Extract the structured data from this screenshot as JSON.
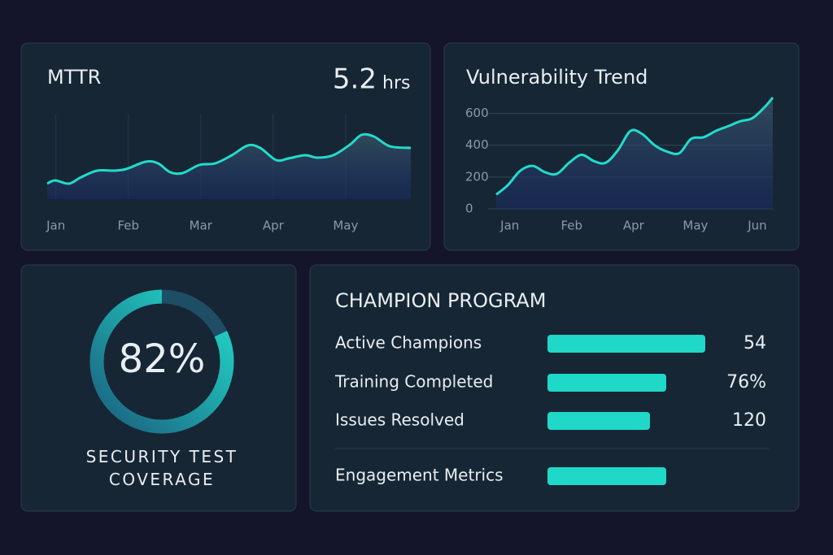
{
  "chart_data": [
    {
      "type": "line",
      "title": "MTTR",
      "headline_value": 5.2,
      "headline_unit": "hrs",
      "color": "#22dccb",
      "x": [
        -0.12,
        -0.01,
        0.18,
        0.35,
        0.57,
        0.8,
        0.97,
        1.24,
        1.41,
        1.58,
        1.75,
        1.98,
        2.2,
        2.43,
        2.65,
        2.82,
        3.04,
        3.21,
        3.44,
        3.61,
        3.83,
        4.06,
        4.22,
        4.39,
        4.61,
        4.9
      ],
      "values": [
        1.9,
        2.3,
        1.9,
        2.7,
        3.5,
        3.5,
        3.7,
        4.6,
        4.4,
        3.3,
        3.2,
        4.2,
        4.4,
        5.4,
        6.6,
        6.3,
        4.8,
        5.0,
        5.4,
        5.1,
        5.4,
        6.7,
        7.9,
        7.7,
        6.5,
        6.3
      ],
      "xlim": [
        -0.12,
        4.9
      ],
      "xticks": [
        {
          "value": 0,
          "label": "Jan"
        },
        {
          "value": 1,
          "label": "Feb"
        },
        {
          "value": 2,
          "label": "Mar"
        },
        {
          "value": 3,
          "label": "Apr"
        },
        {
          "value": 4,
          "label": "May"
        }
      ],
      "ylim": [
        0,
        10.5
      ],
      "grid": true
    },
    {
      "type": "line",
      "title": "Vulnerability Trend",
      "color": "#22dccb",
      "x": [
        -0.22,
        -0.03,
        0.17,
        0.37,
        0.57,
        0.76,
        0.96,
        1.16,
        1.36,
        1.55,
        1.75,
        1.95,
        2.14,
        2.34,
        2.54,
        2.74,
        2.93,
        3.13,
        3.33,
        3.53,
        3.72,
        3.92,
        4.12,
        4.25
      ],
      "values": [
        90,
        150,
        240,
        270,
        230,
        220,
        290,
        340,
        300,
        290,
        370,
        490,
        470,
        400,
        360,
        350,
        440,
        450,
        490,
        520,
        550,
        570,
        640,
        700
      ],
      "xlim": [
        -0.22,
        4.25
      ],
      "xticks": [
        {
          "value": 0,
          "label": "Jan"
        },
        {
          "value": 1,
          "label": "Feb"
        },
        {
          "value": 2,
          "label": "Apr"
        },
        {
          "value": 3,
          "label": "May"
        },
        {
          "value": 4,
          "label": "Jun"
        }
      ],
      "ylim": [
        0,
        700
      ],
      "yticks": [
        0,
        200,
        400,
        600
      ],
      "grid": true
    }
  ],
  "coverage": {
    "value": 82,
    "value_label": "82%",
    "label": "SECURITY TEST COVERAGE",
    "color": "#22dccb"
  },
  "champion_program": {
    "title": "CHAMPION PROGRAM",
    "color": "#1fd8c8",
    "xlim": [
      0,
      100
    ],
    "rows": [
      {
        "label": "Active Champions",
        "bar": 97,
        "value": 54
      },
      {
        "label": "Training Completed",
        "bar": 73,
        "value": 76,
        "value_label": "76%"
      },
      {
        "label": "Issues Resolved",
        "bar": 63,
        "value": 120
      },
      {
        "label": "Engagement Metrics",
        "bar": 73
      }
    ]
  }
}
